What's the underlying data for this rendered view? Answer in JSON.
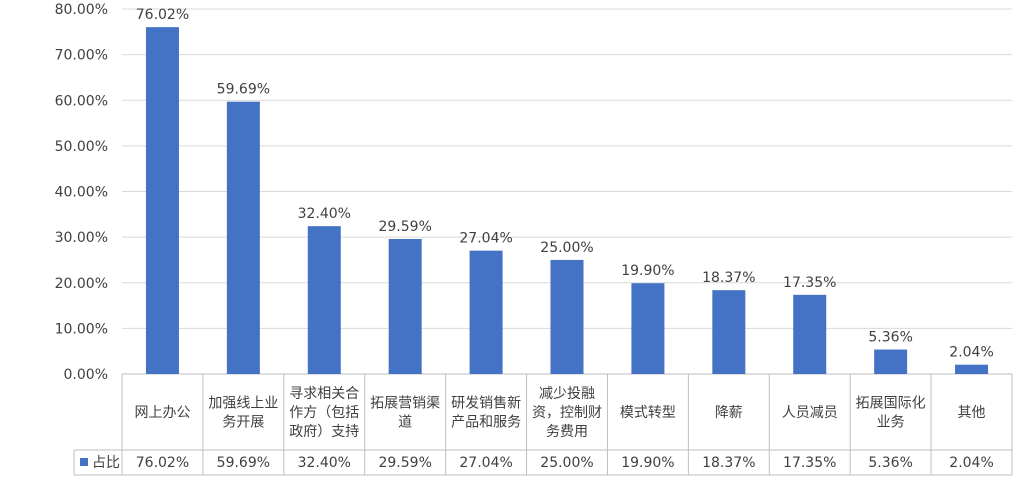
{
  "chart_data": {
    "type": "bar",
    "categories": [
      [
        "网上办公"
      ],
      [
        "加强线上业",
        "务开展"
      ],
      [
        "寻求相关合",
        "作方（包括",
        "政府）支持"
      ],
      [
        "拓展营销渠",
        "道"
      ],
      [
        "研发销售新",
        "产品和服务"
      ],
      [
        "减少投融",
        "资，控制财",
        "务费用"
      ],
      [
        "模式转型"
      ],
      [
        "降薪"
      ],
      [
        "人员减员"
      ],
      [
        "拓展国际化",
        "业务"
      ],
      [
        "其他"
      ]
    ],
    "series": [
      {
        "name": "占比",
        "values": [
          76.02,
          59.69,
          32.4,
          29.59,
          27.04,
          25.0,
          19.9,
          18.37,
          17.35,
          5.36,
          2.04
        ],
        "labels": [
          "76.02%",
          "59.69%",
          "32.40%",
          "29.59%",
          "27.04%",
          "25.00%",
          "19.90%",
          "18.37%",
          "17.35%",
          "5.36%",
          "2.04%"
        ]
      }
    ],
    "ylim": [
      0,
      80
    ],
    "yticks": [
      "0.00%",
      "10.00%",
      "20.00%",
      "30.00%",
      "40.00%",
      "50.00%",
      "60.00%",
      "70.00%",
      "80.00%"
    ],
    "grid": true,
    "data_table": true,
    "colors": {
      "bar": "#4472C4",
      "grid": "#D9D9D9",
      "text": "#404040",
      "border": "#BFBFBF"
    }
  }
}
